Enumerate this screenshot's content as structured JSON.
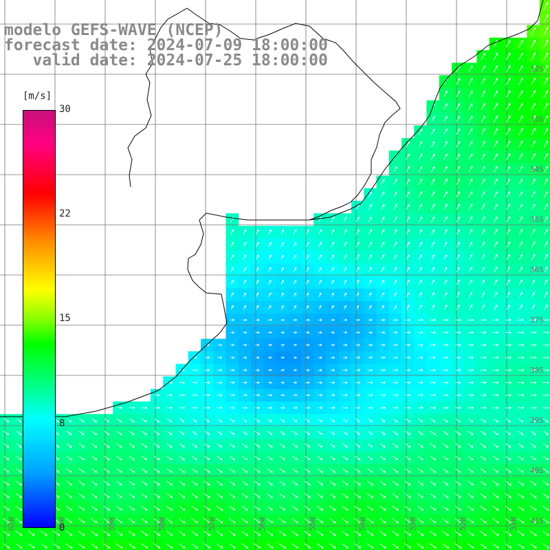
{
  "header": {
    "line1": "modelo GEFS-WAVE (NCEP)",
    "line2": "forecast date: 2024-07-09 18:00:00",
    "line3": "   valid date: 2024-07-25 18:00:00"
  },
  "colorbar": {
    "units": "[m/s]",
    "ticks": [
      "30",
      "22",
      "15",
      "8",
      "0"
    ],
    "tick_values": [
      30,
      22,
      15,
      8,
      0
    ],
    "min": 0,
    "max": 30,
    "stops": [
      "#0000ff",
      "#00a0ff",
      "#00ffff",
      "#00ff88",
      "#00ff00",
      "#88ff00",
      "#ffff00",
      "#ff8800",
      "#ff0000",
      "#ff0080",
      "#c8107a"
    ]
  },
  "map": {
    "lat_labels": [
      "32S",
      "33S",
      "34S",
      "35S",
      "36S",
      "37S",
      "38S",
      "39S",
      "40S",
      "41S"
    ],
    "lon_labels": [
      "61W",
      "60W",
      "59W",
      "58W",
      "57W",
      "56W",
      "55W",
      "54W",
      "53W",
      "52W",
      "51W"
    ],
    "colors": {
      "land": "#ffffff",
      "grid": "#707070",
      "coast": "#000000",
      "arrow": "#ffffff"
    }
  }
}
